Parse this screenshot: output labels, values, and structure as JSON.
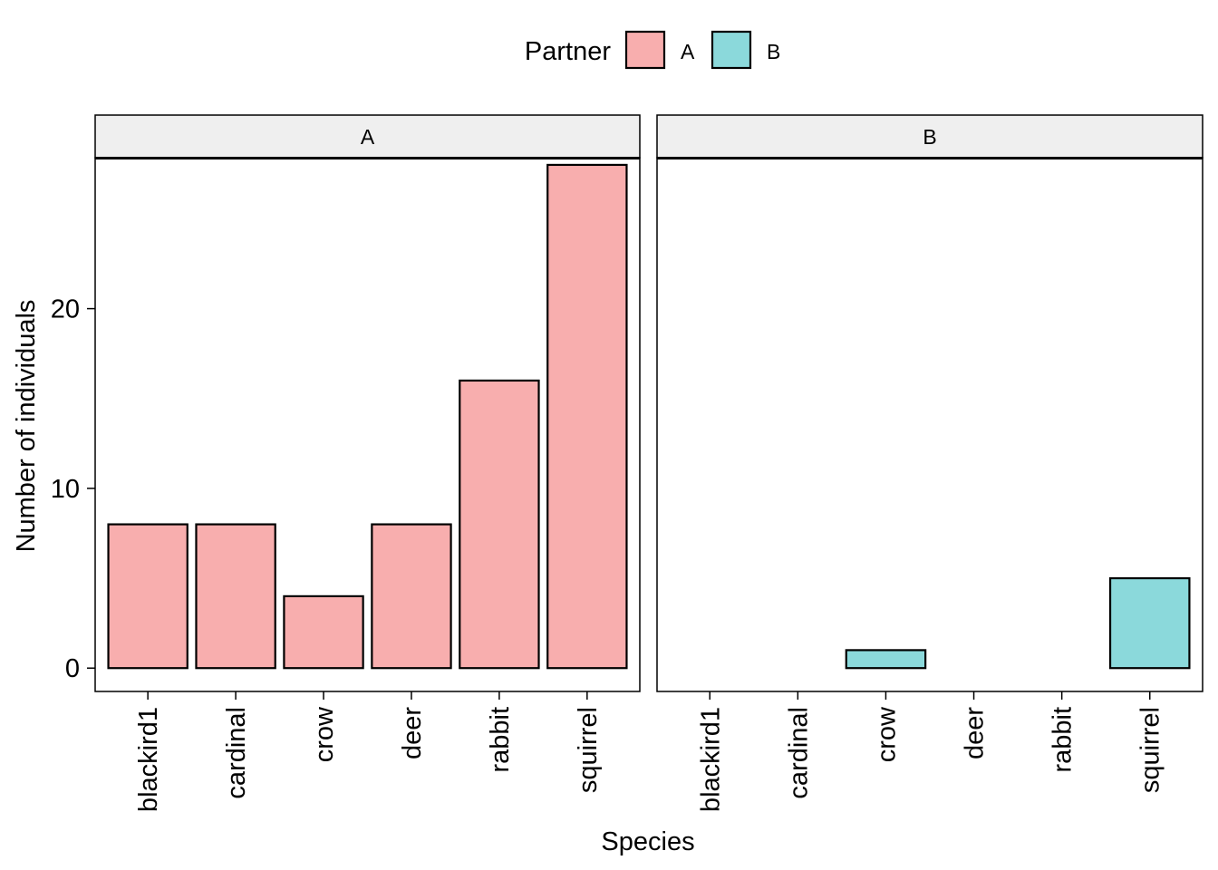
{
  "chart_data": {
    "type": "bar",
    "title": "",
    "xlabel": "Species",
    "ylabel": "Number of individuals",
    "ylim": [
      -1.3,
      28.4
    ],
    "yticks": [
      0,
      10,
      20
    ],
    "categories": [
      "blackird1",
      "cardinal",
      "crow",
      "deer",
      "rabbit",
      "squirrel"
    ],
    "legend": {
      "title": "Partner",
      "placement": "top",
      "entries": [
        {
          "label": "A",
          "color": "#F8AEAE"
        },
        {
          "label": "B",
          "color": "#8BD9DB"
        }
      ]
    },
    "facets": [
      {
        "label": "A",
        "color": "#F8AEAE",
        "values": [
          8,
          8,
          4,
          8,
          16,
          28
        ]
      },
      {
        "label": "B",
        "color": "#8BD9DB",
        "values": [
          0,
          0,
          1,
          0,
          0,
          5
        ]
      }
    ],
    "strip_color": "#EFEFEF",
    "grid": false
  }
}
